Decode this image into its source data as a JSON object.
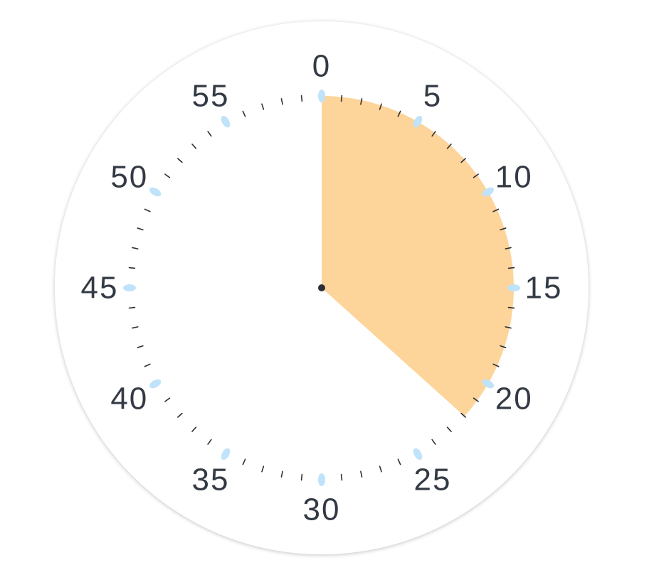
{
  "timer": {
    "elapsed_minutes": 22,
    "max_minutes": 60,
    "major_step_minutes": 5,
    "labels": [
      "0",
      "5",
      "10",
      "15",
      "20",
      "25",
      "30",
      "35",
      "40",
      "45",
      "50",
      "55"
    ],
    "colors": {
      "face": "#ffffff",
      "face_shadow": "#e6e6e6",
      "elapsed_sector": "#fdd499",
      "minor_tick": "#2c2f36",
      "major_marker": "#bfe3fa",
      "label": "#333a44",
      "center_pin": "#2c2f36"
    }
  }
}
